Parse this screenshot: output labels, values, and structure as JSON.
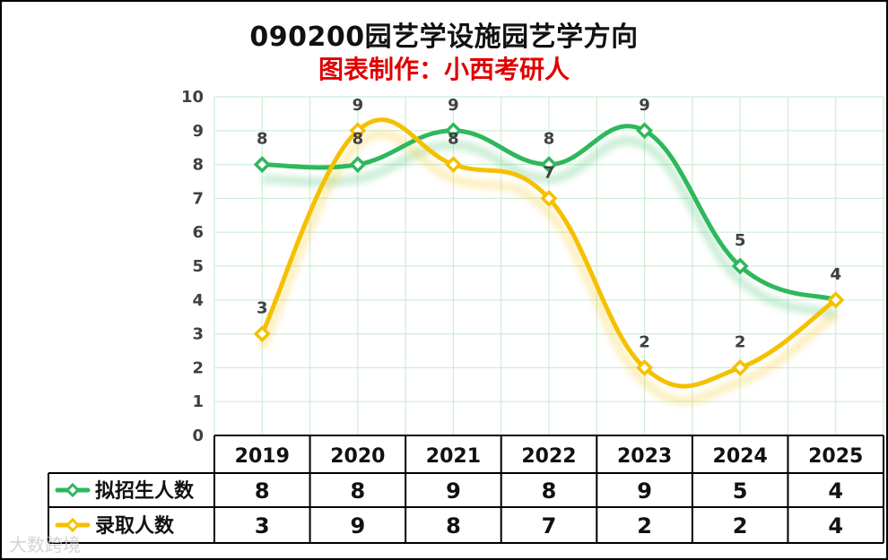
{
  "title": "090200园艺学设施园艺学方向",
  "subtitle": "图表制作：小西考研人",
  "watermark": "大数跨境",
  "chart_data": {
    "type": "line",
    "categories": [
      "2019",
      "2020",
      "2021",
      "2022",
      "2023",
      "2024",
      "2025"
    ],
    "ylim": [
      0,
      10
    ],
    "yticks": [
      0,
      1,
      2,
      3,
      4,
      5,
      6,
      7,
      8,
      9,
      10
    ],
    "grid": true,
    "legend": "data-table",
    "series": [
      {
        "name": "拟招生人数",
        "values": [
          8,
          8,
          9,
          8,
          9,
          5,
          4
        ],
        "color": "#2eb85c"
      },
      {
        "name": "录取人数",
        "values": [
          3,
          9,
          8,
          7,
          2,
          2,
          4
        ],
        "color": "#f5c000"
      }
    ]
  }
}
